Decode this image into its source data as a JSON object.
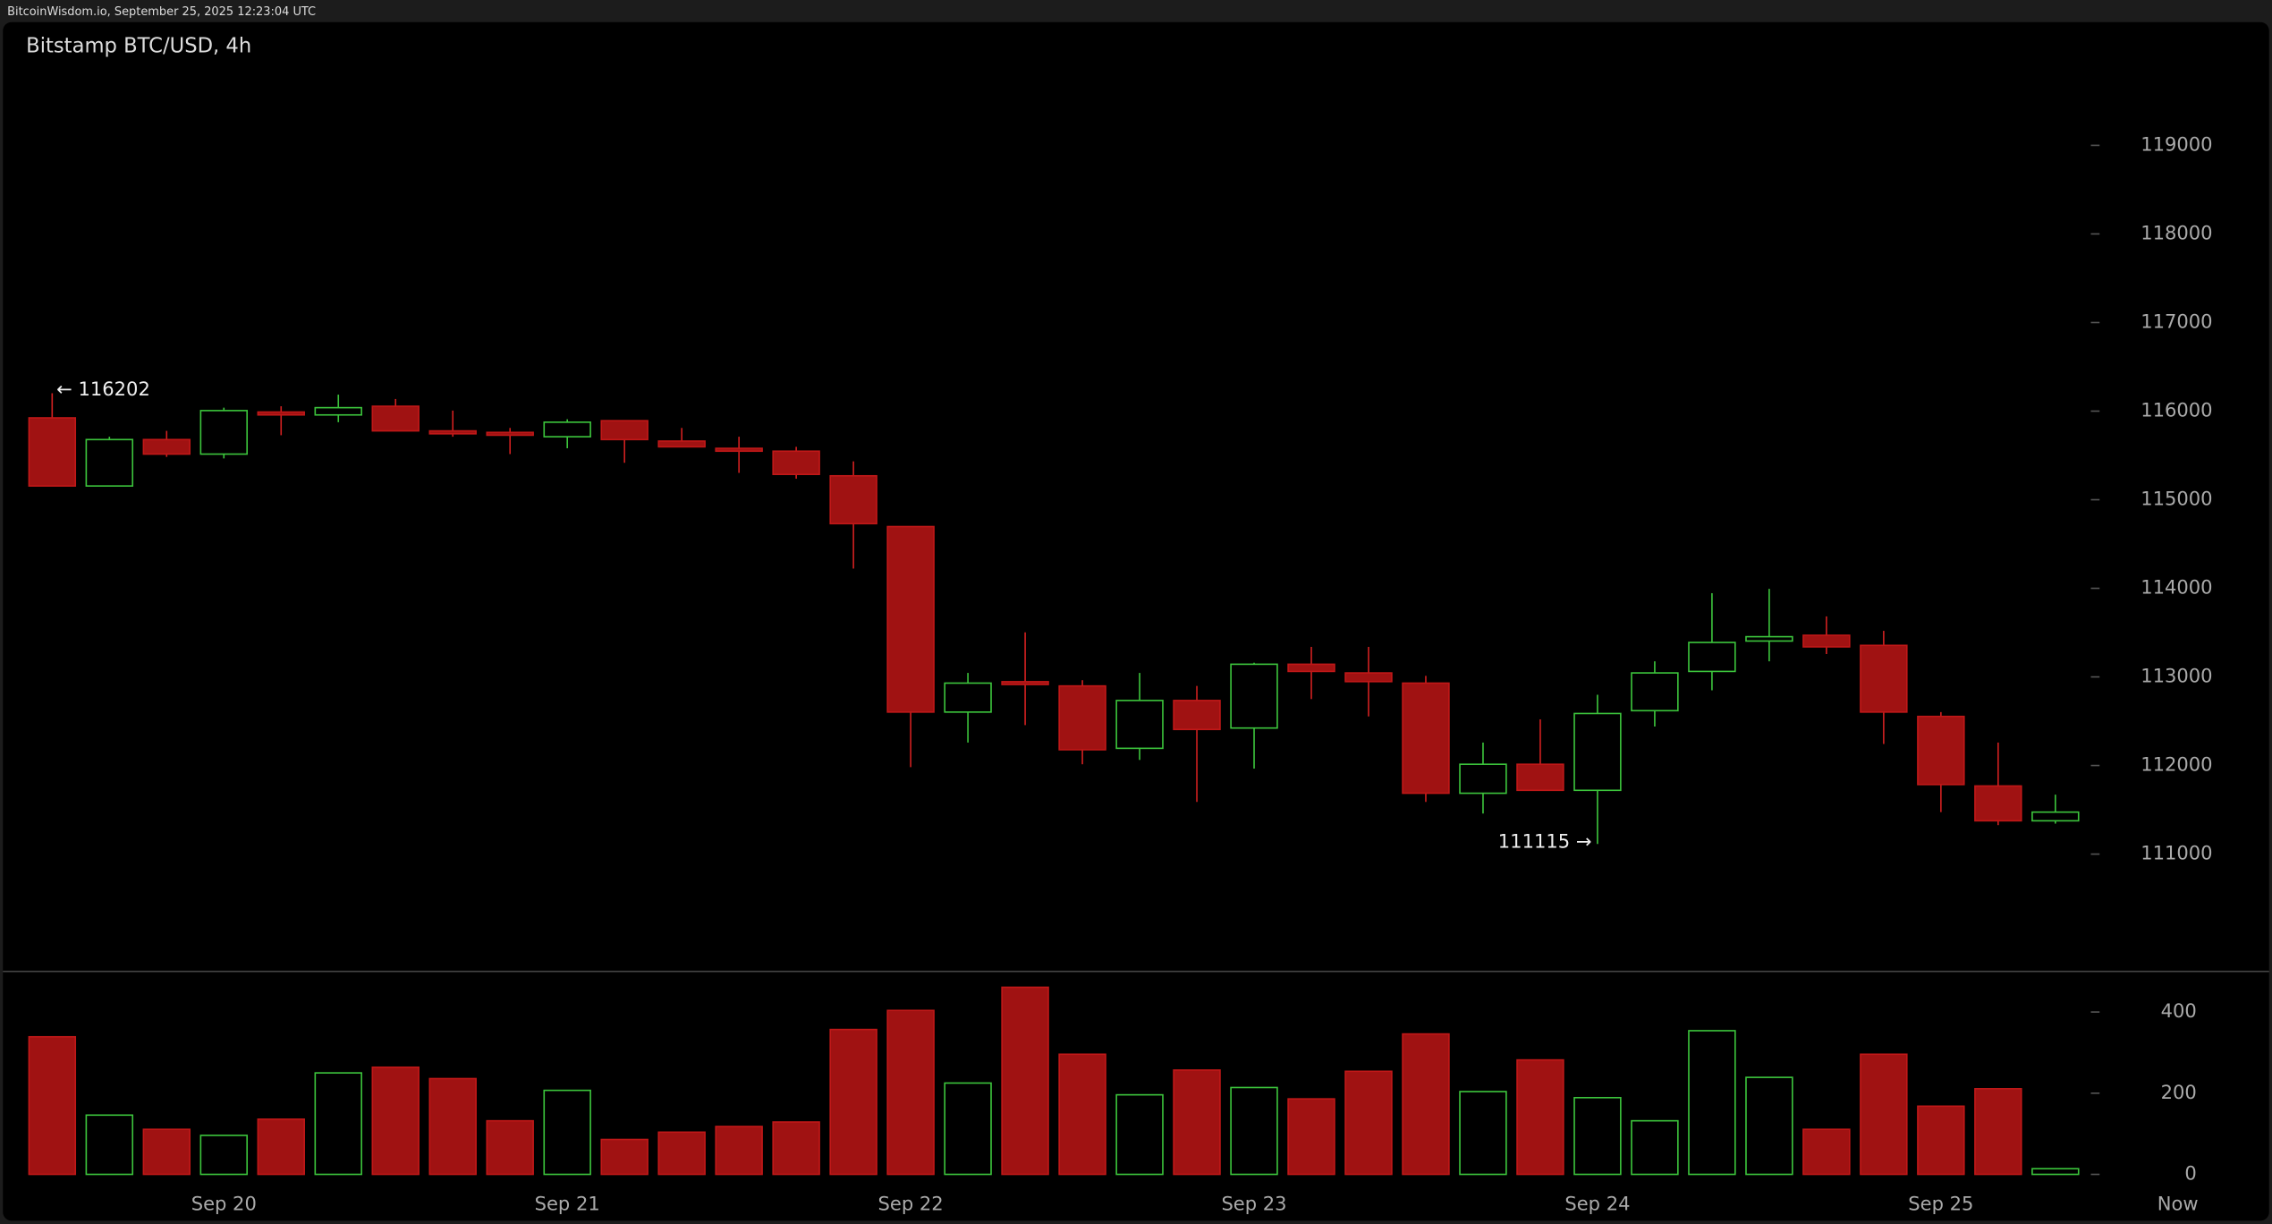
{
  "header": "BitcoinWisdom.io, September 25, 2025 12:23:04 UTC",
  "chart_data": {
    "type": "candlestick",
    "title": "Bitstamp BTC/USD, 4h",
    "categories": [
      null,
      null,
      null,
      "Sep 20",
      null,
      null,
      null,
      null,
      null,
      "Sep 21",
      null,
      null,
      null,
      null,
      null,
      "Sep 22",
      null,
      null,
      null,
      null,
      null,
      "Sep 23",
      null,
      null,
      null,
      null,
      null,
      "Sep 24",
      null,
      null,
      null,
      null,
      null,
      "Sep 25",
      null,
      null
    ],
    "now_label": "Now",
    "open": [
      115924,
      115155,
      115679,
      115515,
      115990,
      115957,
      116055,
      115777,
      115760,
      115711,
      115892,
      115662,
      115580,
      115548,
      115270,
      114697,
      112603,
      112946,
      112898,
      112194,
      112734,
      112423,
      113143,
      113045,
      112930,
      111687,
      112014,
      111720,
      112619,
      113062,
      113405,
      113470,
      113356,
      112554,
      111769,
      111376
    ],
    "high": [
      116202,
      115711,
      115777,
      116039,
      116055,
      116186,
      116137,
      116006,
      115810,
      115908,
      115892,
      115810,
      115711,
      115597,
      115433,
      114697,
      113045,
      113503,
      112963,
      113045,
      112898,
      113160,
      113339,
      113339,
      113012,
      112259,
      112521,
      112799,
      113176,
      113945,
      113994,
      113683,
      113520,
      112603,
      112259,
      111671
    ],
    "low": [
      115155,
      115155,
      115483,
      115466,
      115728,
      115875,
      115777,
      115711,
      115515,
      115581,
      115417,
      115597,
      115303,
      115237,
      114223,
      111982,
      112259,
      112456,
      112014,
      112063,
      111589,
      111965,
      112750,
      112554,
      111589,
      111458,
      111720,
      111115,
      112440,
      112849,
      113176,
      113258,
      112243,
      111474,
      111327,
      111344
    ],
    "close": [
      115155,
      115679,
      115515,
      116006,
      115957,
      116039,
      115777,
      115744,
      115728,
      115875,
      115679,
      115597,
      115548,
      115286,
      114730,
      112603,
      112930,
      112914,
      112178,
      112734,
      112407,
      113143,
      113062,
      112947,
      111687,
      112014,
      111720,
      112587,
      113045,
      113389,
      113454,
      113339,
      112603,
      111785,
      111376,
      111474
    ],
    "volume": [
      339,
      146,
      111,
      96,
      136,
      250,
      264,
      236,
      132,
      207,
      86,
      104,
      118,
      129,
      357,
      404,
      225,
      461,
      296,
      196,
      257,
      214,
      186,
      254,
      346,
      204,
      282,
      189,
      132,
      354,
      239,
      111,
      296,
      168,
      211,
      14
    ],
    "high_label": "← 116202",
    "low_label": "111115 →",
    "ylim": [
      109700,
      120000
    ],
    "yticks": [
      111000,
      112000,
      113000,
      114000,
      115000,
      116000,
      117000,
      118000,
      119000
    ],
    "volume_ylim": [
      0,
      500
    ],
    "volume_yticks": [
      0,
      200,
      400
    ],
    "up_color": "#3cc43c",
    "down_color": "#a01212",
    "grid": false
  }
}
